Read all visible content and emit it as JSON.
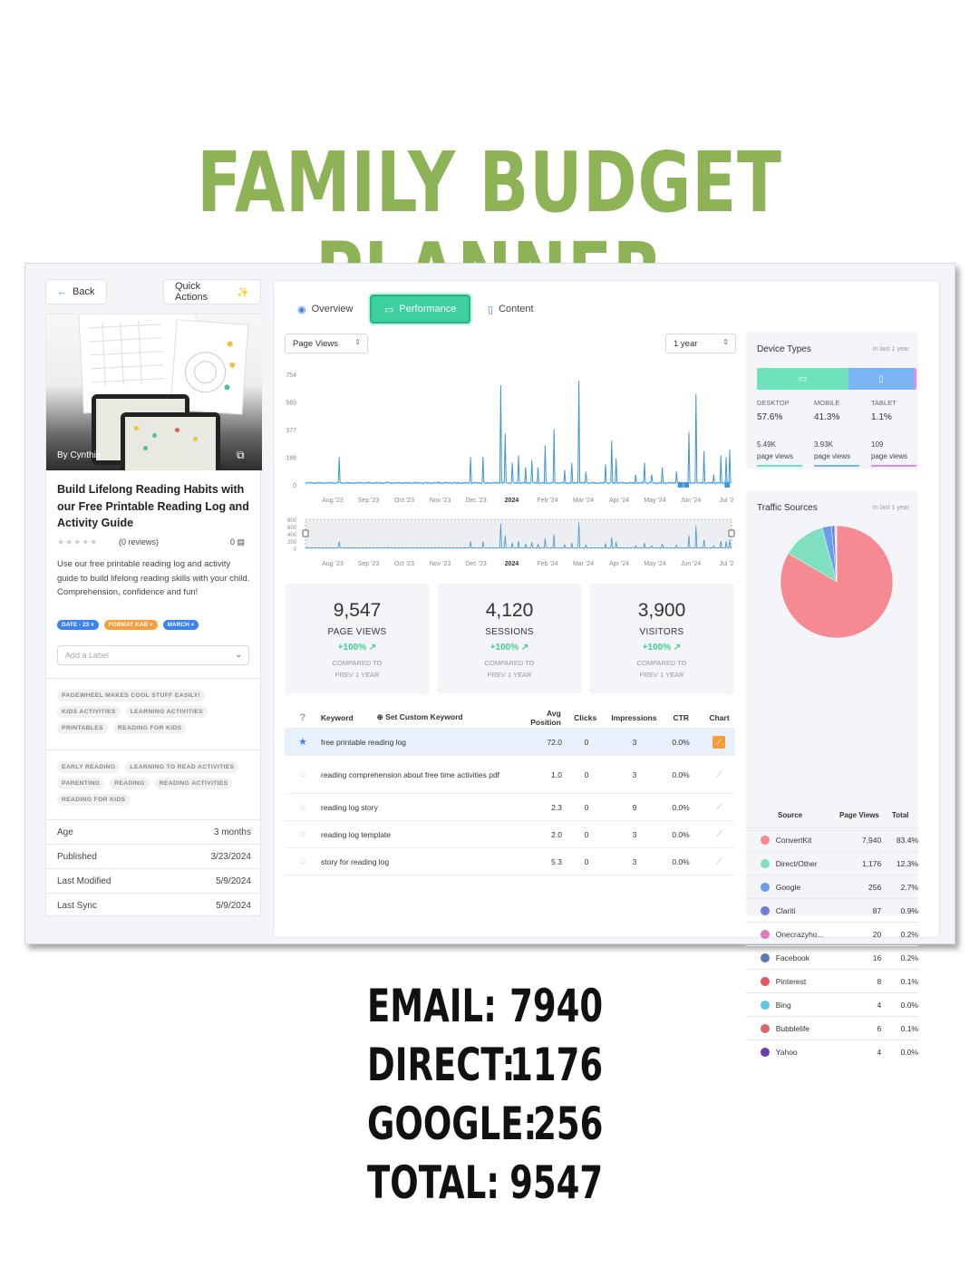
{
  "headline": "FAMILY BUDGET PLANNER",
  "left": {
    "back_label": "Back",
    "quick_actions_label": "Quick Actions",
    "author": "By Cynthia",
    "title": "Build Lifelong Reading Habits with our Free Printable Reading Log and Activity Guide",
    "reviews": "(0 reviews)",
    "comments": "0",
    "description": "Use our free printable reading log and activity guide to build lifelong reading skills with your child. Comprehension, confidence and fun!",
    "chips": [
      {
        "label": "DATE - 23",
        "color": "#3b82f6"
      },
      {
        "label": "FORMAT KAB",
        "color": "#f59e3b"
      },
      {
        "label": "MARCH",
        "color": "#3b82f6"
      }
    ],
    "label_placeholder": "Add a Label",
    "tags_group1": [
      "PAGEWHEEL MAKES COOL STUFF EASILY!",
      "KIDS ACTIVITIES",
      "LEARNING ACTIVITIES",
      "PRINTABLES",
      "READING FOR KIDS"
    ],
    "tags_group2": [
      "EARLY READING",
      "LEARNING TO READ ACTIVITIES",
      "PARENTING",
      "READING",
      "READING ACTIVITIES",
      "READING FOR KIDS"
    ],
    "meta": [
      {
        "label": "Age",
        "value": "3 months"
      },
      {
        "label": "Published",
        "value": "3/23/2024"
      },
      {
        "label": "Last Modified",
        "value": "5/9/2024"
      },
      {
        "label": "Last Sync",
        "value": "5/9/2024"
      }
    ]
  },
  "tabs": {
    "overview": "Overview",
    "performance": "Performance",
    "content": "Content"
  },
  "metric_select": "Page Views",
  "range_select": "1 year",
  "chart_data": {
    "type": "line",
    "ylabel": "",
    "yticks": [
      "754",
      "565",
      "377",
      "188",
      "0"
    ],
    "ylim": [
      0,
      754
    ],
    "xticks": [
      "Aug '23",
      "Sep '23",
      "Oct '23",
      "Nov '23",
      "Dec '23",
      "2024",
      "Feb '24",
      "Mar '24",
      "Apr '24",
      "May '24",
      "Jun '24",
      "Jul '2"
    ],
    "overview_yticks": [
      "800",
      "600",
      "400",
      "200",
      "0"
    ],
    "spikes": [
      {
        "day": 38,
        "value": 190
      },
      {
        "day": 93,
        "value": 20
      },
      {
        "day": 150,
        "value": 20
      },
      {
        "day": 186,
        "value": 190
      },
      {
        "day": 200,
        "value": 190
      },
      {
        "day": 220,
        "value": 680
      },
      {
        "day": 225,
        "value": 350
      },
      {
        "day": 233,
        "value": 150
      },
      {
        "day": 240,
        "value": 200
      },
      {
        "day": 248,
        "value": 120
      },
      {
        "day": 255,
        "value": 170
      },
      {
        "day": 262,
        "value": 120
      },
      {
        "day": 270,
        "value": 270
      },
      {
        "day": 280,
        "value": 380
      },
      {
        "day": 292,
        "value": 100
      },
      {
        "day": 300,
        "value": 150
      },
      {
        "day": 308,
        "value": 710
      },
      {
        "day": 316,
        "value": 90
      },
      {
        "day": 338,
        "value": 140
      },
      {
        "day": 345,
        "value": 300
      },
      {
        "day": 350,
        "value": 180
      },
      {
        "day": 372,
        "value": 70
      },
      {
        "day": 382,
        "value": 150
      },
      {
        "day": 390,
        "value": 70
      },
      {
        "day": 402,
        "value": 120
      },
      {
        "day": 418,
        "value": 90
      },
      {
        "day": 432,
        "value": 360
      },
      {
        "day": 440,
        "value": 620
      },
      {
        "day": 449,
        "value": 230
      },
      {
        "day": 460,
        "value": 70
      },
      {
        "day": 468,
        "value": 200
      },
      {
        "day": 474,
        "value": 190
      },
      {
        "day": 478,
        "value": 240
      }
    ]
  },
  "stats": [
    {
      "value": "9,547",
      "label": "PAGE VIEWS",
      "change": "+100% ↗",
      "compare1": "COMPARED TO",
      "compare2": "PREV 1 YEAR"
    },
    {
      "value": "4,120",
      "label": "SESSIONS",
      "change": "+100% ↗",
      "compare1": "COMPARED TO",
      "compare2": "PREV 1 YEAR"
    },
    {
      "value": "3,900",
      "label": "VISITORS",
      "change": "+100% ↗",
      "compare1": "COMPARED TO",
      "compare2": "PREV 1 YEAR"
    }
  ],
  "keywords": {
    "headers": {
      "keyword": "Keyword",
      "custom": "Set Custom Keyword",
      "avg": "Avg Position",
      "clicks": "Clicks",
      "impressions": "Impressions",
      "ctr": "CTR",
      "chart": "Chart"
    },
    "rows": [
      {
        "keyword": "free printable reading log",
        "avg": "72.0",
        "clicks": "0",
        "impressions": "3",
        "ctr": "0.0%",
        "starred": true
      },
      {
        "keyword": "reading comprehension about free time activities pdf",
        "avg": "1.0",
        "clicks": "0",
        "impressions": "3",
        "ctr": "0.0%",
        "starred": false
      },
      {
        "keyword": "reading log story",
        "avg": "2.3",
        "clicks": "0",
        "impressions": "9",
        "ctr": "0.0%",
        "starred": false
      },
      {
        "keyword": "reading log template",
        "avg": "2.0",
        "clicks": "0",
        "impressions": "3",
        "ctr": "0.0%",
        "starred": false
      },
      {
        "keyword": "story for reading log",
        "avg": "5.3",
        "clicks": "0",
        "impressions": "3",
        "ctr": "0.0%",
        "starred": false
      }
    ]
  },
  "devices": {
    "title": "Device Types",
    "note": "In last 1 year",
    "items": [
      {
        "name": "DESKTOP",
        "pct": "57.6%",
        "views": "5.49K",
        "unit": "page views",
        "color": "#6ee2bd",
        "share": 57.6
      },
      {
        "name": "MOBILE",
        "pct": "41.3%",
        "views": "3.93K",
        "unit": "page views",
        "color": "#7ab4f5",
        "share": 41.3
      },
      {
        "name": "TABLET",
        "pct": "1.1%",
        "views": "109",
        "unit": "page views",
        "color": "#d88ef0",
        "share": 1.1
      }
    ]
  },
  "traffic": {
    "title": "Traffic Sources",
    "note": "In last 1 year",
    "headers": {
      "source": "Source",
      "views": "Page Views",
      "total": "Total"
    },
    "rows": [
      {
        "name": "ConvertKit",
        "views": "7,940",
        "total": "83.4%",
        "color": "#f58a92",
        "share": 83.4
      },
      {
        "name": "Direct/Other",
        "views": "1,176",
        "total": "12.3%",
        "color": "#7fe0bf",
        "share": 12.3
      },
      {
        "name": "Google",
        "views": "256",
        "total": "2.7%",
        "color": "#6a9cf0",
        "share": 2.7
      },
      {
        "name": "Clariti",
        "views": "87",
        "total": "0.9%",
        "color": "#6f7fd8",
        "share": 0.9
      },
      {
        "name": "Onecrazyho...",
        "views": "20",
        "total": "0.2%",
        "color": "#e07ab8",
        "share": 0.2
      },
      {
        "name": "Facebook",
        "views": "16",
        "total": "0.2%",
        "color": "#5b7bb8",
        "share": 0.2
      },
      {
        "name": "Pinterest",
        "views": "8",
        "total": "0.1%",
        "color": "#e8545c",
        "share": 0.1
      },
      {
        "name": "Bing",
        "views": "4",
        "total": "0.0%",
        "color": "#5cc8e8",
        "share": 0.0
      },
      {
        "name": "Bubblelife",
        "views": "6",
        "total": "0.1%",
        "color": "#d36a6a",
        "share": 0.1
      },
      {
        "name": "Yahoo",
        "views": "4",
        "total": "0.0%",
        "color": "#6a3fb0",
        "share": 0.0
      }
    ]
  },
  "summary": [
    {
      "label": "EMAIL:",
      "value": "7940"
    },
    {
      "label": "DIRECT:",
      "value": "1176"
    },
    {
      "label": "GOOGLE:",
      "value": "256"
    },
    {
      "label": "TOTAL:",
      "value": "9547"
    }
  ]
}
